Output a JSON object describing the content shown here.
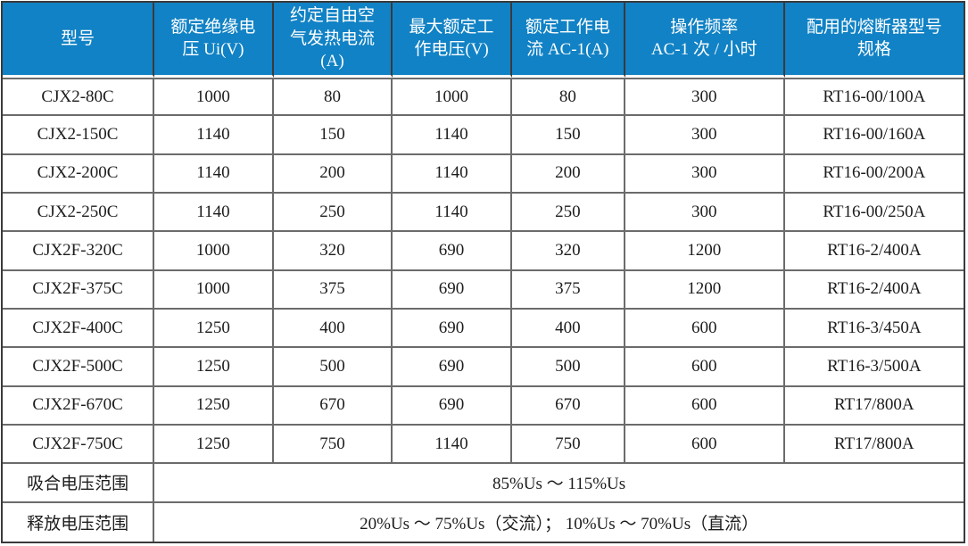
{
  "table": {
    "columns": [
      "型号",
      "额定绝缘电\n压 Ui(V)",
      "约定自由空\n气发热电流\n(A)",
      "最大额定工\n作电压(V)",
      "额定工作电\n流 AC-1(A)",
      "操作频率\nAC-1 次 / 小时",
      "配用的熔断器型号\n规格"
    ],
    "rows": [
      {
        "model": "CJX2-80C",
        "values": [
          "1000",
          "80",
          "1000",
          "80",
          "300",
          "RT16-00/100A"
        ]
      },
      {
        "model": "CJX2-150C",
        "values": [
          "1140",
          "150",
          "1140",
          "150",
          "300",
          "RT16-00/160A"
        ]
      },
      {
        "model": "CJX2-200C",
        "values": [
          "1140",
          "200",
          "1140",
          "200",
          "300",
          "RT16-00/200A"
        ]
      },
      {
        "model": "CJX2-250C",
        "values": [
          "1140",
          "250",
          "1140",
          "250",
          "300",
          "RT16-00/250A"
        ]
      },
      {
        "model": "CJX2F-320C",
        "values": [
          "1000",
          "320",
          "690",
          "320",
          "1200",
          "RT16-2/400A"
        ]
      },
      {
        "model": "CJX2F-375C",
        "values": [
          "1000",
          "375",
          "690",
          "375",
          "1200",
          "RT16-2/400A"
        ]
      },
      {
        "model": "CJX2F-400C",
        "values": [
          "1250",
          "400",
          "690",
          "400",
          "600",
          "RT16-3/450A"
        ]
      },
      {
        "model": "CJX2F-500C",
        "values": [
          "1250",
          "500",
          "690",
          "500",
          "600",
          "RT16-3/500A"
        ]
      },
      {
        "model": "CJX2F-670C",
        "values": [
          "1250",
          "670",
          "690",
          "670",
          "600",
          "RT17/800A"
        ]
      },
      {
        "model": "CJX2F-750C",
        "values": [
          "1250",
          "750",
          "1140",
          "750",
          "600",
          "RT17/800A"
        ]
      }
    ],
    "footer_rows": [
      {
        "label": "吸合电压范围",
        "value": "85%Us ～ 115%Us"
      },
      {
        "label": "释放电压范围",
        "value": "20%Us ～ 75%Us（交流）； 10%Us ～ 70%Us（直流）"
      }
    ],
    "colors": {
      "header_bg": "#1182C5",
      "header_text": "#FFFFFF",
      "inner_border": "#6B6B6B",
      "outer_border": "#3A3A3A",
      "body_text": "#1C1C1C"
    }
  }
}
